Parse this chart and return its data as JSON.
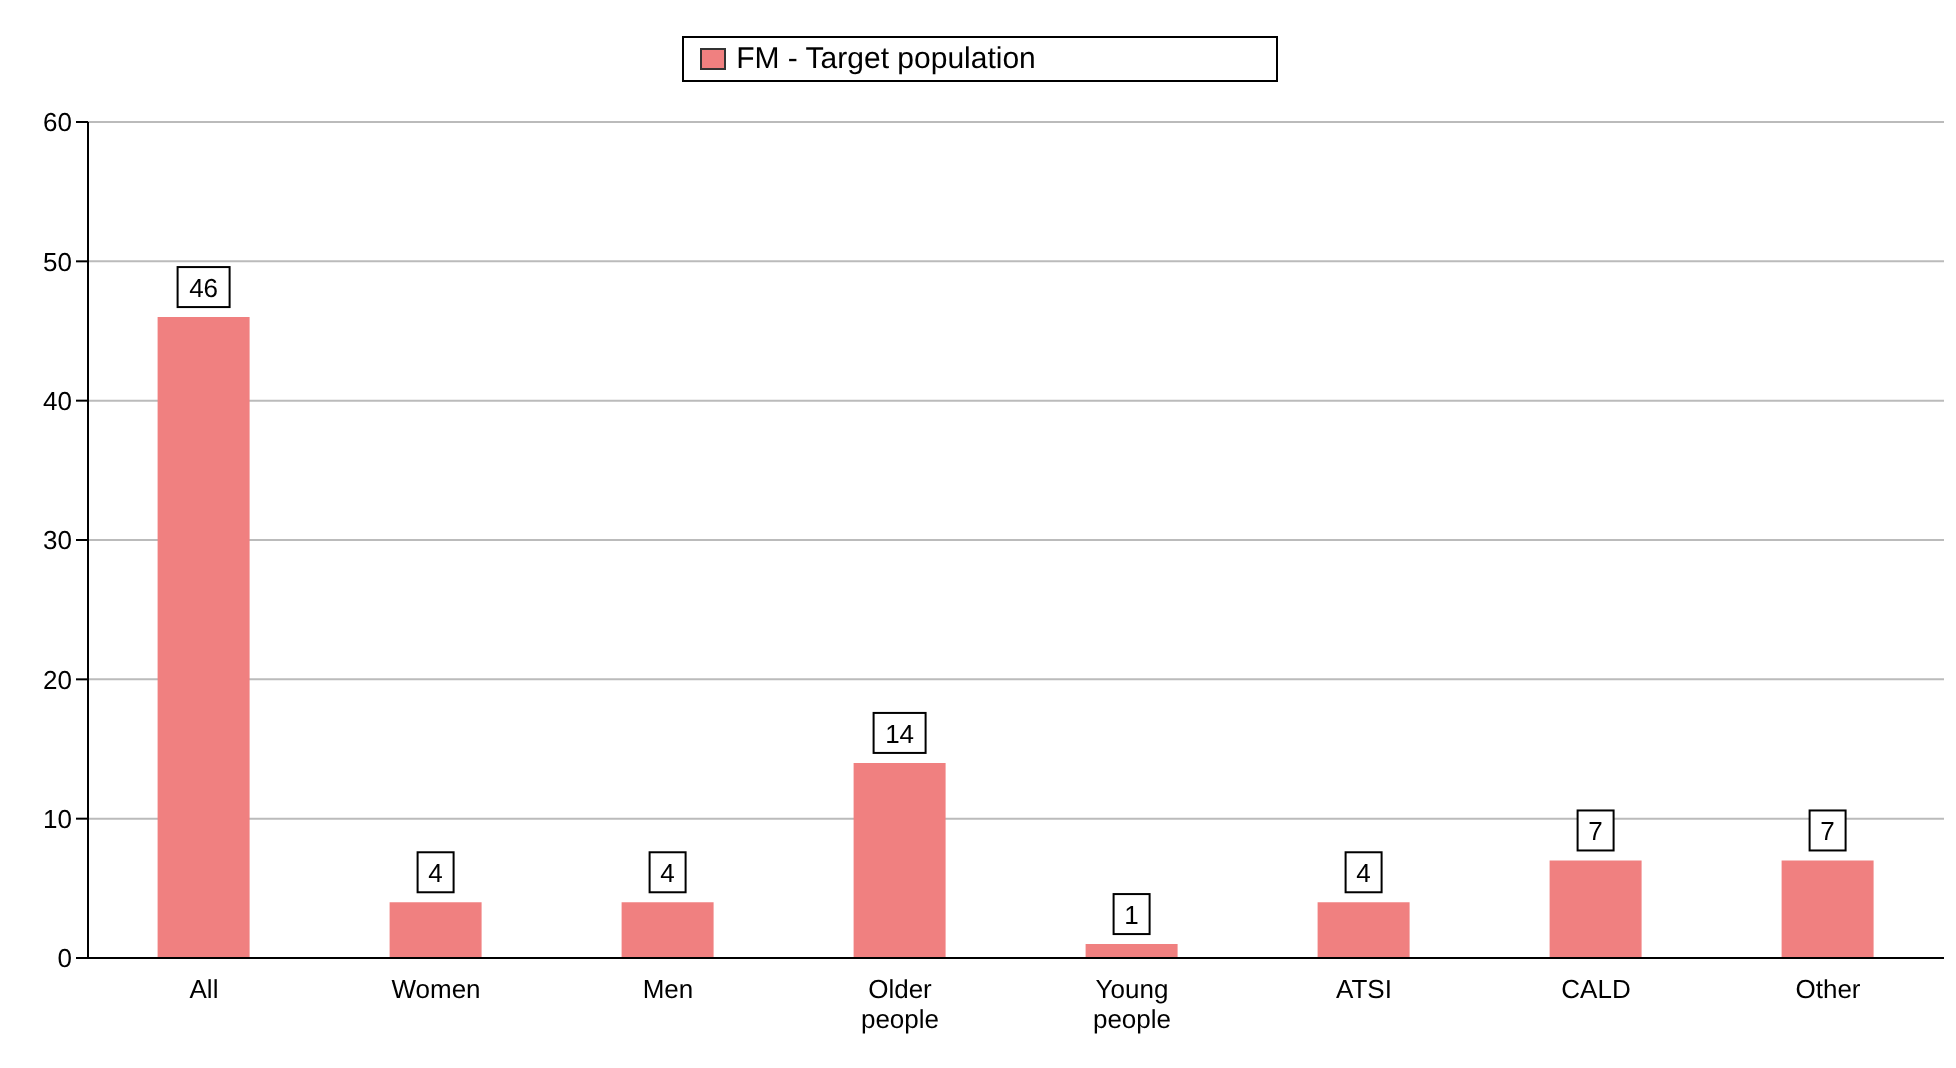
{
  "chart_data": {
    "type": "bar",
    "categories": [
      "All",
      "Women",
      "Men",
      "Older people",
      "Young people",
      "ATSI",
      "CALD",
      "Other"
    ],
    "series": [
      {
        "name": "FM - Target population",
        "color": "#f08080",
        "values": [
          46,
          4,
          4,
          14,
          1,
          4,
          7,
          7
        ]
      }
    ],
    "ylim": [
      0,
      60
    ],
    "yticks": [
      0,
      10,
      20,
      30,
      40,
      50,
      60
    ],
    "grid": "y",
    "legend": "top",
    "data_labels": true
  }
}
